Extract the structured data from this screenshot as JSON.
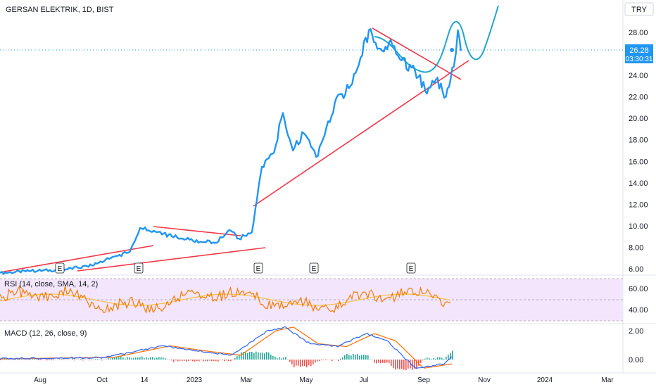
{
  "symbol": {
    "title": "GERSAN ELEKTRIK, 1D, BIST",
    "currency": "TRY"
  },
  "price_badge": {
    "value": "26.28",
    "countdown": "03:30:31",
    "color": "#2196f3"
  },
  "colors": {
    "price_line": "#2196f3",
    "projection": "#22a6c8",
    "trendline": "#f23645",
    "rsi_line": "#f57c00",
    "rsi_sma": "#f5c242",
    "rsi_band": "#f3e5fc",
    "macd_line": "#2962ff",
    "signal_line": "#ff6d00",
    "hist_up": "#26a69a",
    "hist_down": "#ef5350"
  },
  "x_axis": {
    "labels": [
      "Aug",
      "Oct",
      "14",
      "2023",
      "Mar",
      "May",
      "Jul",
      "Sep",
      "Nov",
      "2024",
      "Mar"
    ]
  },
  "earnings_markers": [
    "E",
    "E",
    "E",
    "E",
    "E"
  ],
  "indicators": {
    "rsi": {
      "title": "RSI (14, close, SMA, 14, 2)",
      "ticks": [
        "60.00",
        "40.00"
      ]
    },
    "macd": {
      "title": "MACD (12, 26, close, 9)",
      "ticks": [
        "2.00",
        "0.00"
      ]
    }
  },
  "chart_data": {
    "type": "line",
    "title": "GERSAN ELEKTRIK, 1D, BIST",
    "xlabel": "",
    "ylabel": "",
    "grid": false,
    "ylim": [
      5,
      30
    ],
    "y_ticks": [
      "28.00",
      "26.00",
      "24.00",
      "22.00",
      "20.00",
      "18.00",
      "16.00",
      "14.00",
      "12.00",
      "10.00",
      "8.00",
      "6.00"
    ],
    "series": [
      {
        "name": "",
        "x": [
          "2022-07-01",
          "2022-08-01",
          "2022-09-01",
          "2022-10-01",
          "2022-10-20",
          "2022-11-08",
          "2022-11-18",
          "2022-12-05",
          "2022-12-20",
          "2023-01-10",
          "2023-02-01",
          "2023-02-15",
          "2023-02-25",
          "2023-03-10",
          "2023-03-20",
          "2023-04-01",
          "2023-04-10",
          "2023-04-20",
          "2023-05-01",
          "2023-05-15",
          "2023-06-01",
          "2023-06-15",
          "2023-06-25",
          "2023-07-05",
          "2023-07-15",
          "2023-07-25",
          "2023-08-05",
          "2023-08-20",
          "2023-09-01",
          "2023-09-10",
          "2023-09-20",
          "2023-09-28",
          "2023-10-02",
          "2023-10-05"
        ],
        "values": [
          5.6,
          5.8,
          5.9,
          6.3,
          7.0,
          7.6,
          9.8,
          9.4,
          9.0,
          8.6,
          8.4,
          9.6,
          8.8,
          9.4,
          15.5,
          16.8,
          20.5,
          17.0,
          18.6,
          16.5,
          21.5,
          22.8,
          25.0,
          28.2,
          26.5,
          27.0,
          25.5,
          24.5,
          22.3,
          23.6,
          22.0,
          24.8,
          28.2,
          26.28
        ]
      }
    ]
  }
}
